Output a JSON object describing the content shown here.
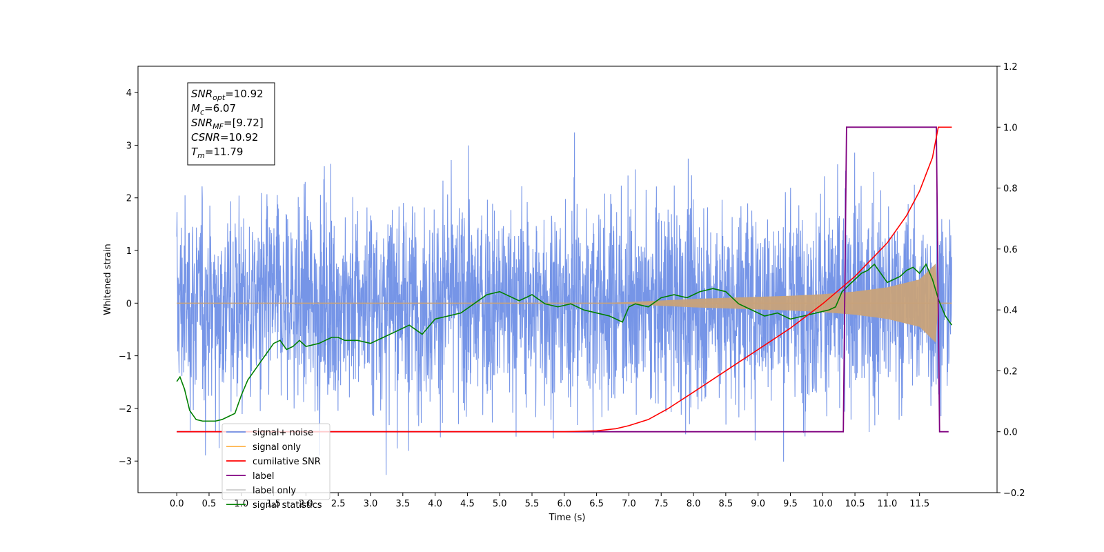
{
  "chart_data": {
    "type": "line",
    "xlabel": "Time (s)",
    "ylabel": "Whitened strain",
    "xlim": [
      -0.6,
      12.7
    ],
    "ylim": [
      -3.6,
      4.5
    ],
    "y2lim": [
      -0.2,
      1.2
    ],
    "x_ticks": [
      "0.0",
      "0.5",
      "1.0",
      "1.5",
      "2.0",
      "2.5",
      "3.0",
      "3.5",
      "4.0",
      "4.5",
      "5.0",
      "5.5",
      "6.0",
      "6.5",
      "7.0",
      "7.5",
      "8.0",
      "8.5",
      "9.0",
      "9.5",
      "10.0",
      "10.5",
      "11.0",
      "11.5"
    ],
    "y_ticks": [
      "4",
      "3",
      "2",
      "1",
      "0",
      "−1",
      "−2",
      "−3"
    ],
    "y2_ticks": [
      "1.2",
      "1.0",
      "0.8",
      "0.6",
      "0.4",
      "0.2",
      "0.0",
      "−0.2"
    ],
    "annotation": {
      "lines": [
        {
          "sym": "SNR",
          "sub": "opt",
          "value": "=10.92"
        },
        {
          "sym": "M",
          "sub": "c",
          "value": "=6.07"
        },
        {
          "sym": "SNR",
          "sub": "MF",
          "value": "=[9.72]"
        },
        {
          "sym": "CSNR",
          "sub": "",
          "value": "=10.92"
        },
        {
          "sym": "T",
          "sub": "m",
          "value": "=11.79"
        }
      ]
    },
    "legend": {
      "position": "lower-left",
      "items": [
        {
          "label": "signal+ noise",
          "color": "#6f8fe6"
        },
        {
          "label": "signal only",
          "color": "#ffb347"
        },
        {
          "label": "cumilative SNR",
          "color": "#ff0000"
        },
        {
          "label": "label",
          "color": "#800080"
        },
        {
          "label": "label only",
          "color": "#cccccc"
        },
        {
          "label": "signal statistics",
          "color": "#008000"
        }
      ]
    },
    "series": [
      {
        "name": "signal+ noise",
        "axis": "left",
        "color": "#6f8fe6",
        "description": "noise trace",
        "envelope_sigma": 1.0,
        "x_range": [
          0.0,
          12.0
        ]
      },
      {
        "name": "signal only",
        "axis": "left",
        "color": "#c8a27a",
        "envelope": {
          "x": [
            6.5,
            7.0,
            7.5,
            8.0,
            8.5,
            9.0,
            9.5,
            10.0,
            10.5,
            11.0,
            11.5,
            11.75,
            11.79,
            12.0
          ],
          "amp": [
            0.0,
            0.02,
            0.05,
            0.08,
            0.1,
            0.12,
            0.14,
            0.17,
            0.22,
            0.3,
            0.45,
            0.75,
            0.0,
            0.0
          ]
        }
      },
      {
        "name": "cumilative SNR",
        "axis": "right",
        "color": "#ff0000",
        "x": [
          0.0,
          6.0,
          6.5,
          6.8,
          7.0,
          7.3,
          7.6,
          8.0,
          8.5,
          9.0,
          9.5,
          10.0,
          10.5,
          11.0,
          11.3,
          11.5,
          11.7,
          11.79,
          11.85,
          12.0
        ],
        "y": [
          0.0,
          0.0,
          0.003,
          0.01,
          0.02,
          0.04,
          0.075,
          0.13,
          0.2,
          0.27,
          0.34,
          0.42,
          0.51,
          0.62,
          0.71,
          0.79,
          0.9,
          1.0,
          1.0,
          1.0
        ]
      },
      {
        "name": "label",
        "axis": "right",
        "color": "#800080",
        "x": [
          0.0,
          10.32,
          10.37,
          11.76,
          11.81,
          11.95
        ],
        "y": [
          0.0,
          0.0,
          1.0,
          1.0,
          0.0,
          0.0
        ]
      },
      {
        "name": "signal statistics",
        "axis": "right",
        "color": "#008000",
        "x": [
          0.0,
          0.05,
          0.12,
          0.2,
          0.3,
          0.4,
          0.5,
          0.6,
          0.7,
          0.8,
          0.9,
          1.0,
          1.1,
          1.2,
          1.3,
          1.4,
          1.5,
          1.6,
          1.7,
          1.8,
          1.9,
          2.0,
          2.2,
          2.4,
          2.5,
          2.6,
          2.8,
          3.0,
          3.2,
          3.4,
          3.6,
          3.8,
          4.0,
          4.2,
          4.4,
          4.6,
          4.8,
          5.0,
          5.1,
          5.3,
          5.5,
          5.7,
          5.9,
          6.1,
          6.3,
          6.5,
          6.7,
          6.9,
          7.0,
          7.1,
          7.3,
          7.5,
          7.7,
          7.9,
          8.1,
          8.3,
          8.5,
          8.7,
          8.9,
          9.1,
          9.3,
          9.5,
          9.7,
          9.9,
          10.1,
          10.2,
          10.3,
          10.4,
          10.5,
          10.6,
          10.7,
          10.8,
          10.9,
          11.0,
          11.1,
          11.2,
          11.3,
          11.4,
          11.5,
          11.6,
          11.7,
          11.8,
          11.9,
          12.0
        ],
        "y": [
          0.165,
          0.18,
          0.14,
          0.07,
          0.04,
          0.035,
          0.035,
          0.035,
          0.04,
          0.05,
          0.06,
          0.12,
          0.17,
          0.2,
          0.23,
          0.26,
          0.29,
          0.3,
          0.27,
          0.28,
          0.3,
          0.28,
          0.29,
          0.31,
          0.31,
          0.3,
          0.3,
          0.29,
          0.31,
          0.33,
          0.35,
          0.32,
          0.37,
          0.38,
          0.39,
          0.42,
          0.45,
          0.46,
          0.45,
          0.43,
          0.45,
          0.42,
          0.41,
          0.42,
          0.4,
          0.39,
          0.38,
          0.36,
          0.41,
          0.42,
          0.41,
          0.44,
          0.45,
          0.44,
          0.46,
          0.47,
          0.46,
          0.42,
          0.4,
          0.38,
          0.39,
          0.37,
          0.38,
          0.39,
          0.4,
          0.41,
          0.46,
          0.48,
          0.5,
          0.52,
          0.53,
          0.55,
          0.52,
          0.49,
          0.5,
          0.51,
          0.53,
          0.54,
          0.52,
          0.55,
          0.5,
          0.43,
          0.38,
          0.35
        ]
      }
    ]
  }
}
